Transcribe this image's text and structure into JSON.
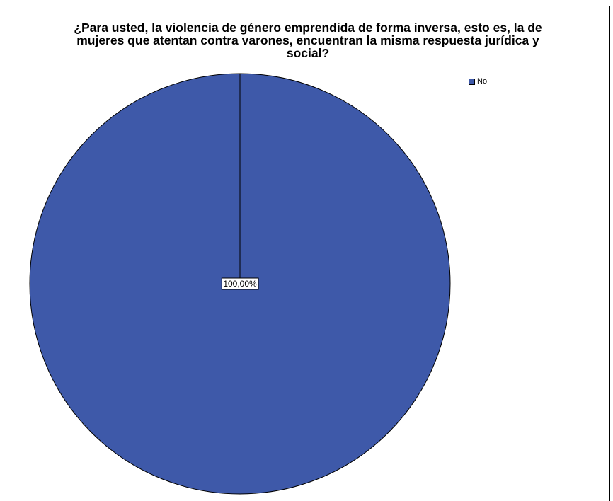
{
  "chart_data": {
    "type": "pie",
    "title": "¿Para usted, la violencia de género emprendida de forma inversa, esto es, la de\nmujeres que atentan contra varones, encuentran la misma respuesta jurídica y\nsocial?",
    "categories": [
      "No"
    ],
    "values": [
      100.0
    ],
    "data_labels": [
      "100,00%"
    ],
    "colors": [
      "#3e59a9"
    ],
    "legend": {
      "position": "top-right",
      "entries": [
        "No"
      ]
    }
  }
}
